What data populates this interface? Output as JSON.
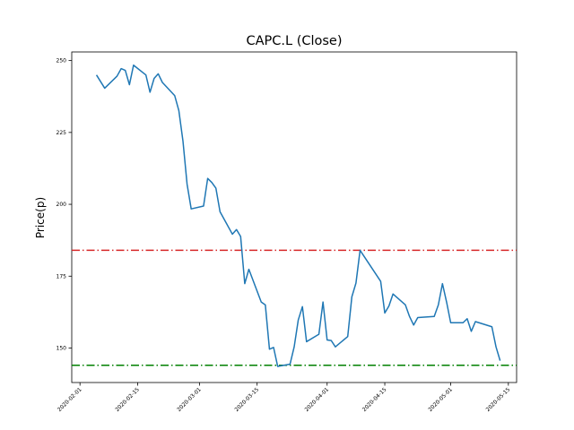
{
  "chart_data": {
    "type": "line",
    "title": "CAPC.L (Close)",
    "xlabel": "",
    "ylabel": "Price(p)",
    "xlim": [
      "2020-01-30",
      "2020-05-17"
    ],
    "ylim": [
      138,
      253
    ],
    "x_ticks": [
      "2020-02-01",
      "2020-02-15",
      "2020-03-01",
      "2020-03-15",
      "2020-04-01",
      "2020-04-15",
      "2020-05-01",
      "2020-05-15"
    ],
    "y_ticks": [
      150,
      175,
      200,
      225,
      250
    ],
    "grid": false,
    "series": [
      {
        "color": "#1f77b4",
        "points": [
          [
            "2020-02-05",
            245.0
          ],
          [
            "2020-02-07",
            240.4
          ],
          [
            "2020-02-10",
            244.6
          ],
          [
            "2020-02-11",
            247.2
          ],
          [
            "2020-02-12",
            246.6
          ],
          [
            "2020-02-13",
            241.6
          ],
          [
            "2020-02-14",
            248.4
          ],
          [
            "2020-02-17",
            245.0
          ],
          [
            "2020-02-18",
            239.0
          ],
          [
            "2020-02-19",
            243.8
          ],
          [
            "2020-02-20",
            245.4
          ],
          [
            "2020-02-21",
            242.4
          ],
          [
            "2020-02-24",
            237.8
          ],
          [
            "2020-02-25",
            232.6
          ],
          [
            "2020-02-26",
            222.0
          ],
          [
            "2020-02-27",
            207.0
          ],
          [
            "2020-02-28",
            198.4
          ],
          [
            "2020-03-02",
            199.4
          ],
          [
            "2020-03-03",
            209.0
          ],
          [
            "2020-03-04",
            207.6
          ],
          [
            "2020-03-05",
            205.6
          ],
          [
            "2020-03-06",
            197.4
          ],
          [
            "2020-03-09",
            189.6
          ],
          [
            "2020-03-10",
            191.2
          ],
          [
            "2020-03-11",
            188.8
          ],
          [
            "2020-03-12",
            172.4
          ],
          [
            "2020-03-13",
            177.4
          ],
          [
            "2020-03-16",
            166.0
          ],
          [
            "2020-03-17",
            165.0
          ],
          [
            "2020-03-18",
            149.6
          ],
          [
            "2020-03-19",
            150.2
          ],
          [
            "2020-03-20",
            143.6
          ],
          [
            "2020-03-23",
            144.4
          ],
          [
            "2020-03-24",
            150.4
          ],
          [
            "2020-03-25",
            159.8
          ],
          [
            "2020-03-26",
            164.4
          ],
          [
            "2020-03-27",
            152.2
          ],
          [
            "2020-03-30",
            154.8
          ],
          [
            "2020-03-31",
            166.0
          ],
          [
            "2020-04-01",
            152.8
          ],
          [
            "2020-04-02",
            152.6
          ],
          [
            "2020-04-03",
            150.4
          ],
          [
            "2020-04-06",
            154.0
          ],
          [
            "2020-04-07",
            167.8
          ],
          [
            "2020-04-08",
            172.6
          ],
          [
            "2020-04-09",
            184.0
          ],
          [
            "2020-04-14",
            173.2
          ],
          [
            "2020-04-15",
            162.2
          ],
          [
            "2020-04-16",
            164.6
          ],
          [
            "2020-04-17",
            168.8
          ],
          [
            "2020-04-20",
            165.0
          ],
          [
            "2020-04-21",
            161.0
          ],
          [
            "2020-04-22",
            158.0
          ],
          [
            "2020-04-23",
            160.6
          ],
          [
            "2020-04-27",
            161.0
          ],
          [
            "2020-04-28",
            165.0
          ],
          [
            "2020-04-29",
            172.4
          ],
          [
            "2020-04-30",
            166.0
          ],
          [
            "2020-05-01",
            158.8
          ],
          [
            "2020-05-04",
            158.8
          ],
          [
            "2020-05-05",
            160.2
          ],
          [
            "2020-05-06",
            155.8
          ],
          [
            "2020-05-07",
            159.2
          ],
          [
            "2020-05-11",
            157.4
          ],
          [
            "2020-05-12",
            150.4
          ],
          [
            "2020-05-13",
            145.6
          ]
        ]
      }
    ],
    "hlines": [
      {
        "y": 184.0,
        "color": "#d62728",
        "style": "dashdot"
      },
      {
        "y": 144.0,
        "color": "#008000",
        "style": "dashdot"
      }
    ]
  }
}
